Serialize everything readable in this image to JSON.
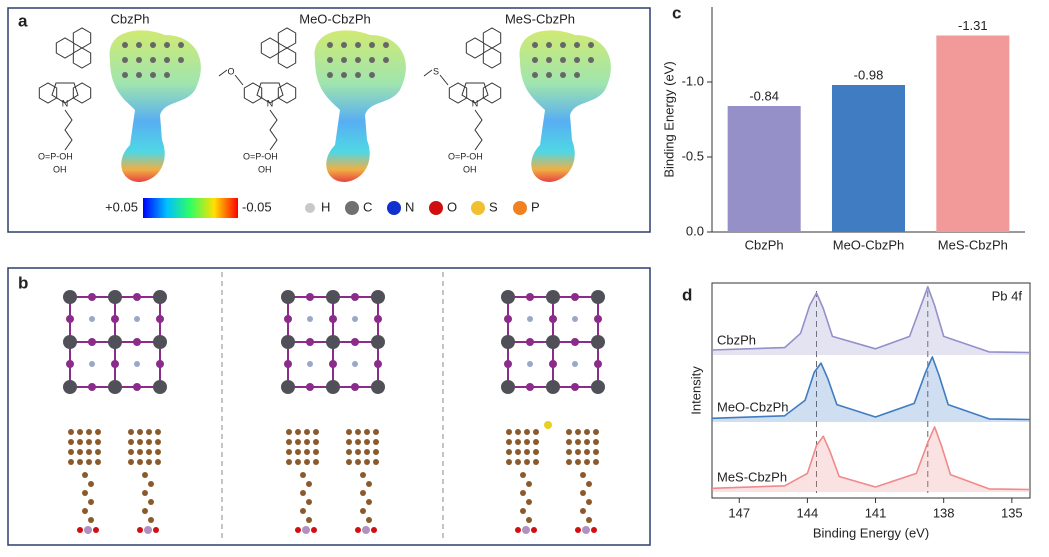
{
  "panel_a": {
    "label": "a",
    "molecules": [
      "CbzPh",
      "MeO-CbzPh",
      "MeS-CbzPh"
    ],
    "scale_min": "+0.05",
    "scale_max": "-0.05",
    "atoms": [
      "H",
      "C",
      "N",
      "O",
      "S",
      "P"
    ],
    "structure_text": {
      "n": "N",
      "o": "O",
      "s": "S",
      "p": "O=P-OH",
      "oh": "OH"
    }
  },
  "panel_b": {
    "label": "b"
  },
  "chart_data": [
    {
      "type": "bar",
      "panel_label": "c",
      "ylabel": "Binding Energy (eV)",
      "categories": [
        "CbzPh",
        "MeO-CbzPh",
        "MeS-CbzPh"
      ],
      "values": [
        -0.84,
        -0.98,
        -1.31
      ],
      "colors": [
        "#9590c8",
        "#3f7cc2",
        "#f29a9a"
      ],
      "ylim": [
        0,
        -1.5
      ],
      "yticks": [
        {
          "value": 0,
          "label": "0.0"
        },
        -0.5,
        {
          "value": -1,
          "label": "-1.0"
        }
      ]
    },
    {
      "type": "line",
      "panel_label": "d",
      "xlabel": "Binding Energy (eV)",
      "ylabel": "Intensity",
      "annotation": "Pb 4f",
      "xlim": [
        148.2,
        134.2
      ],
      "xticks": [
        147,
        144,
        141,
        138,
        135
      ],
      "reference_lines": [
        143.6,
        138.7
      ],
      "series": [
        {
          "name": "CbzPh",
          "color": "#9590c8",
          "x": [
            148.2,
            145,
            144.3,
            143.9,
            143.6,
            143.3,
            142.9,
            141,
            139.5,
            139.0,
            138.7,
            138.4,
            138.0,
            136,
            134.2
          ],
          "values": [
            0.08,
            0.12,
            0.35,
            0.8,
            1.0,
            0.75,
            0.3,
            0.1,
            0.3,
            0.8,
            1.1,
            0.8,
            0.3,
            0.05,
            0.04
          ]
        },
        {
          "name": "MeO-CbzPh",
          "color": "#3f7cc2",
          "x": [
            148.2,
            145,
            144.1,
            143.7,
            143.4,
            143.1,
            142.7,
            141,
            139.3,
            138.8,
            138.5,
            138.2,
            137.8,
            136,
            134.2
          ],
          "values": [
            0.06,
            0.1,
            0.35,
            0.8,
            0.95,
            0.7,
            0.28,
            0.08,
            0.3,
            0.8,
            1.05,
            0.75,
            0.28,
            0.05,
            0.04
          ]
        },
        {
          "name": "MeS-CbzPh",
          "color": "#f08a8a",
          "x": [
            148.2,
            145,
            144.0,
            143.6,
            143.3,
            143.0,
            142.6,
            141,
            139.2,
            138.7,
            138.4,
            138.1,
            137.7,
            136,
            134.2
          ],
          "values": [
            0.06,
            0.1,
            0.3,
            0.75,
            0.9,
            0.65,
            0.25,
            0.08,
            0.3,
            0.8,
            1.05,
            0.75,
            0.28,
            0.05,
            0.04
          ]
        }
      ]
    }
  ]
}
